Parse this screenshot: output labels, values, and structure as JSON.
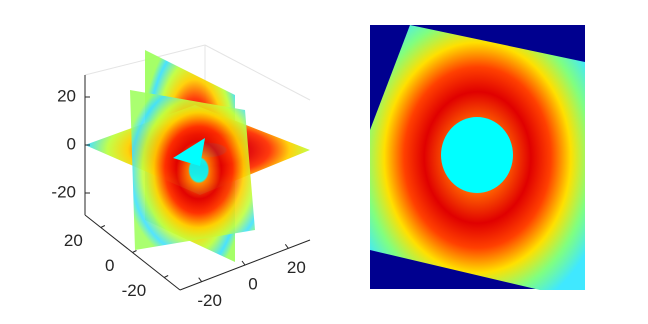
{
  "chart_data": [
    {
      "type": "slice3d",
      "xlim": [
        -30,
        30
      ],
      "xticks": [
        -20,
        0,
        20
      ],
      "ylim": [
        -30,
        30
      ],
      "yticks": [
        -20,
        0,
        20
      ],
      "zlim": [
        -30,
        30
      ],
      "zticks": [
        -20,
        0,
        20
      ]
    },
    {
      "type": "image"
    }
  ]
}
